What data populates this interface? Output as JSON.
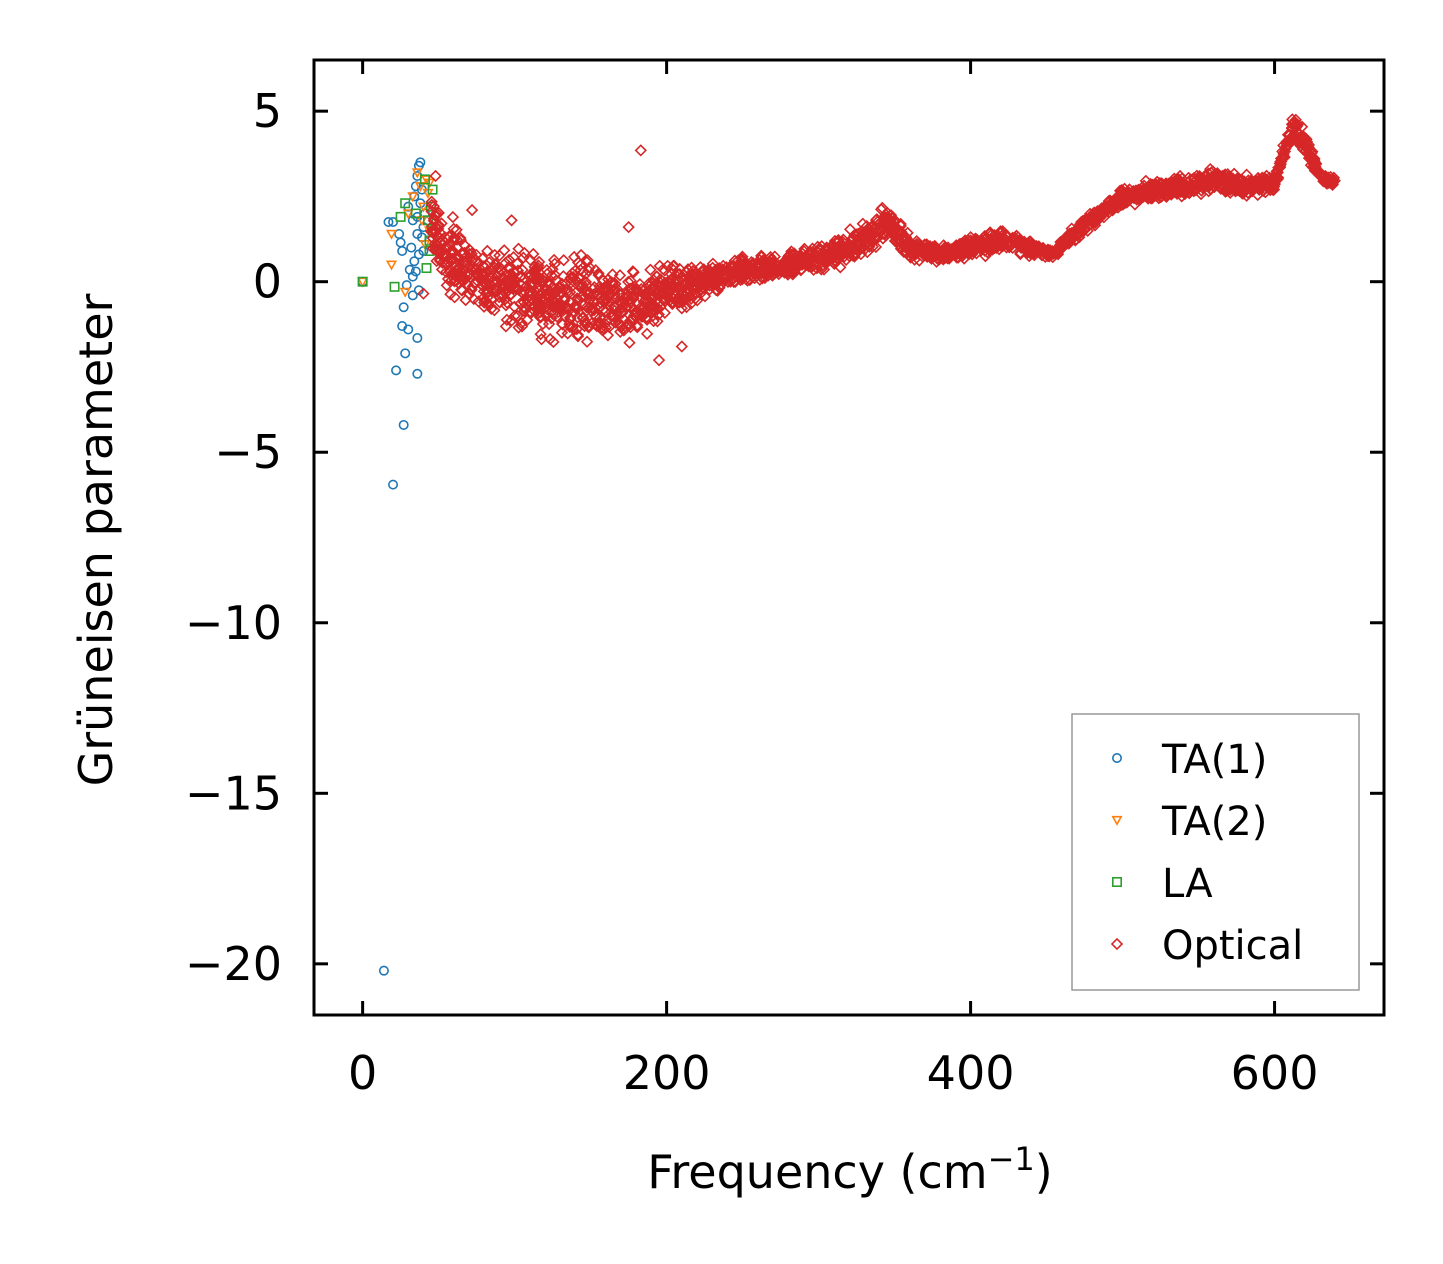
{
  "chart_data": {
    "type": "scatter",
    "title": "",
    "xlabel": "Frequency (cm",
    "xlabel_sup": "−1",
    "xlabel_close": ")",
    "ylabel": "Grüneisen parameter",
    "xlim": [
      -32,
      672
    ],
    "ylim": [
      -21.5,
      6.5
    ],
    "x_ticks": [
      {
        "value": 0,
        "label": "0"
      },
      {
        "value": 200,
        "label": "200"
      },
      {
        "value": 400,
        "label": "400"
      },
      {
        "value": 600,
        "label": "600"
      }
    ],
    "y_ticks": [
      {
        "value": 5,
        "label": "5"
      },
      {
        "value": 0,
        "label": "0"
      },
      {
        "value": -5,
        "label": "−5"
      },
      {
        "value": -10,
        "label": "−10"
      },
      {
        "value": -15,
        "label": "−15"
      },
      {
        "value": -20,
        "label": "−20"
      }
    ],
    "grid": false,
    "legend_position": "bottom-right",
    "series": [
      {
        "name": "TA(1)",
        "color": "#1f77b4",
        "marker": "circle",
        "points": [
          {
            "x": 0,
            "y": 0
          },
          {
            "x": 14,
            "y": -20.2
          },
          {
            "x": 20,
            "y": -5.95
          },
          {
            "x": 27,
            "y": -4.2
          },
          {
            "x": 22,
            "y": -2.6
          },
          {
            "x": 36,
            "y": -2.7
          },
          {
            "x": 28,
            "y": -2.1
          },
          {
            "x": 30,
            "y": -1.4
          },
          {
            "x": 36,
            "y": -1.65
          },
          {
            "x": 26,
            "y": -1.3
          },
          {
            "x": 27,
            "y": -0.75
          },
          {
            "x": 33,
            "y": -0.4
          },
          {
            "x": 29,
            "y": -0.1
          },
          {
            "x": 37,
            "y": -0.25
          },
          {
            "x": 17,
            "y": 1.75
          },
          {
            "x": 20,
            "y": 1.75
          },
          {
            "x": 24,
            "y": 1.4
          },
          {
            "x": 26,
            "y": 0.9
          },
          {
            "x": 25,
            "y": 1.15
          },
          {
            "x": 31,
            "y": 0.35
          },
          {
            "x": 33,
            "y": 0.15
          },
          {
            "x": 30,
            "y": 2.2
          },
          {
            "x": 35,
            "y": 2.8
          },
          {
            "x": 37,
            "y": 3.4
          },
          {
            "x": 36,
            "y": 3.1
          },
          {
            "x": 38,
            "y": 2.3
          },
          {
            "x": 34,
            "y": 0.6
          },
          {
            "x": 39,
            "y": 1.3
          },
          {
            "x": 36,
            "y": 1.9
          },
          {
            "x": 40,
            "y": 0.9
          },
          {
            "x": 35,
            "y": 0.3
          },
          {
            "x": 38,
            "y": 3.5
          },
          {
            "x": 41,
            "y": 2.0
          },
          {
            "x": 32,
            "y": 1.0
          },
          {
            "x": 39,
            "y": 2.7
          },
          {
            "x": 36,
            "y": 1.4
          },
          {
            "x": 34,
            "y": 2.5
          },
          {
            "x": 40,
            "y": 1.6
          },
          {
            "x": 33,
            "y": 1.8
          },
          {
            "x": 37,
            "y": 0.8
          }
        ]
      },
      {
        "name": "TA(2)",
        "color": "#ff7f0e",
        "marker": "triangle-down",
        "points": [
          {
            "x": 0,
            "y": 0
          },
          {
            "x": 19,
            "y": 0.5
          },
          {
            "x": 19,
            "y": 1.4
          },
          {
            "x": 28,
            "y": -0.3
          },
          {
            "x": 30,
            "y": 2.0
          },
          {
            "x": 33,
            "y": 2.5
          },
          {
            "x": 36,
            "y": 3.2
          },
          {
            "x": 38,
            "y": 2.8
          },
          {
            "x": 40,
            "y": 2.2
          },
          {
            "x": 42,
            "y": 3.0
          },
          {
            "x": 44,
            "y": 1.5
          },
          {
            "x": 43,
            "y": 2.6
          },
          {
            "x": 39,
            "y": 1.8
          },
          {
            "x": 41,
            "y": 1.1
          },
          {
            "x": 44,
            "y": 2.9
          }
        ]
      },
      {
        "name": "LA",
        "color": "#2ca02c",
        "marker": "square",
        "points": [
          {
            "x": 0,
            "y": 0
          },
          {
            "x": 21,
            "y": -0.15
          },
          {
            "x": 25,
            "y": 1.9
          },
          {
            "x": 28,
            "y": 2.3
          },
          {
            "x": 35,
            "y": 2.0
          },
          {
            "x": 42,
            "y": 0.4
          },
          {
            "x": 44,
            "y": 1.2
          },
          {
            "x": 45,
            "y": 2.2
          },
          {
            "x": 46,
            "y": 2.7
          },
          {
            "x": 43,
            "y": 1.8
          },
          {
            "x": 41,
            "y": 3.0
          },
          {
            "x": 44,
            "y": 0.9
          },
          {
            "x": 46,
            "y": 1.5
          }
        ]
      },
      {
        "name": "Optical",
        "color": "#d62728",
        "marker": "diamond",
        "isolated_points": [
          {
            "x": 183,
            "y": 3.85
          },
          {
            "x": 48,
            "y": 3.1
          },
          {
            "x": 40,
            "y": -0.35
          },
          {
            "x": 195,
            "y": -2.3
          },
          {
            "x": 210,
            "y": -1.9
          },
          {
            "x": 175,
            "y": 1.6
          },
          {
            "x": 98,
            "y": 1.8
          },
          {
            "x": 72,
            "y": 2.1
          }
        ],
        "center_curve": [
          [
            45,
            1.8
          ],
          [
            55,
            0.8
          ],
          [
            70,
            0.2
          ],
          [
            90,
            -0.2
          ],
          [
            110,
            -0.2
          ],
          [
            130,
            -0.6
          ],
          [
            150,
            -0.5
          ],
          [
            170,
            -0.8
          ],
          [
            190,
            -0.5
          ],
          [
            210,
            -0.2
          ],
          [
            230,
            0.1
          ],
          [
            250,
            0.3
          ],
          [
            270,
            0.4
          ],
          [
            290,
            0.6
          ],
          [
            310,
            0.8
          ],
          [
            330,
            1.2
          ],
          [
            345,
            1.7
          ],
          [
            360,
            1.0
          ],
          [
            380,
            0.8
          ],
          [
            400,
            1.0
          ],
          [
            420,
            1.2
          ],
          [
            440,
            1.0
          ],
          [
            455,
            0.8
          ],
          [
            465,
            1.3
          ],
          [
            480,
            1.8
          ],
          [
            500,
            2.5
          ],
          [
            520,
            2.7
          ],
          [
            540,
            2.8
          ],
          [
            560,
            3.0
          ],
          [
            580,
            2.8
          ],
          [
            600,
            2.9
          ],
          [
            612,
            4.6
          ],
          [
            620,
            4.0
          ],
          [
            630,
            3.1
          ],
          [
            640,
            2.9
          ]
        ],
        "spread_curve": [
          [
            45,
            1.2
          ],
          [
            60,
            1.6
          ],
          [
            80,
            1.5
          ],
          [
            100,
            1.5
          ],
          [
            120,
            1.7
          ],
          [
            140,
            1.8
          ],
          [
            160,
            1.6
          ],
          [
            180,
            1.3
          ],
          [
            200,
            1.1
          ],
          [
            220,
            0.7
          ],
          [
            240,
            0.5
          ],
          [
            260,
            0.5
          ],
          [
            280,
            0.5
          ],
          [
            300,
            0.5
          ],
          [
            320,
            0.6
          ],
          [
            340,
            0.7
          ],
          [
            360,
            0.4
          ],
          [
            380,
            0.3
          ],
          [
            400,
            0.4
          ],
          [
            420,
            0.4
          ],
          [
            440,
            0.3
          ],
          [
            455,
            0.2
          ],
          [
            470,
            0.3
          ],
          [
            490,
            0.3
          ],
          [
            510,
            0.4
          ],
          [
            530,
            0.4
          ],
          [
            550,
            0.4
          ],
          [
            570,
            0.4
          ],
          [
            590,
            0.4
          ],
          [
            605,
            0.4
          ],
          [
            615,
            0.6
          ],
          [
            625,
            0.3
          ],
          [
            640,
            0.2
          ]
        ]
      }
    ]
  }
}
